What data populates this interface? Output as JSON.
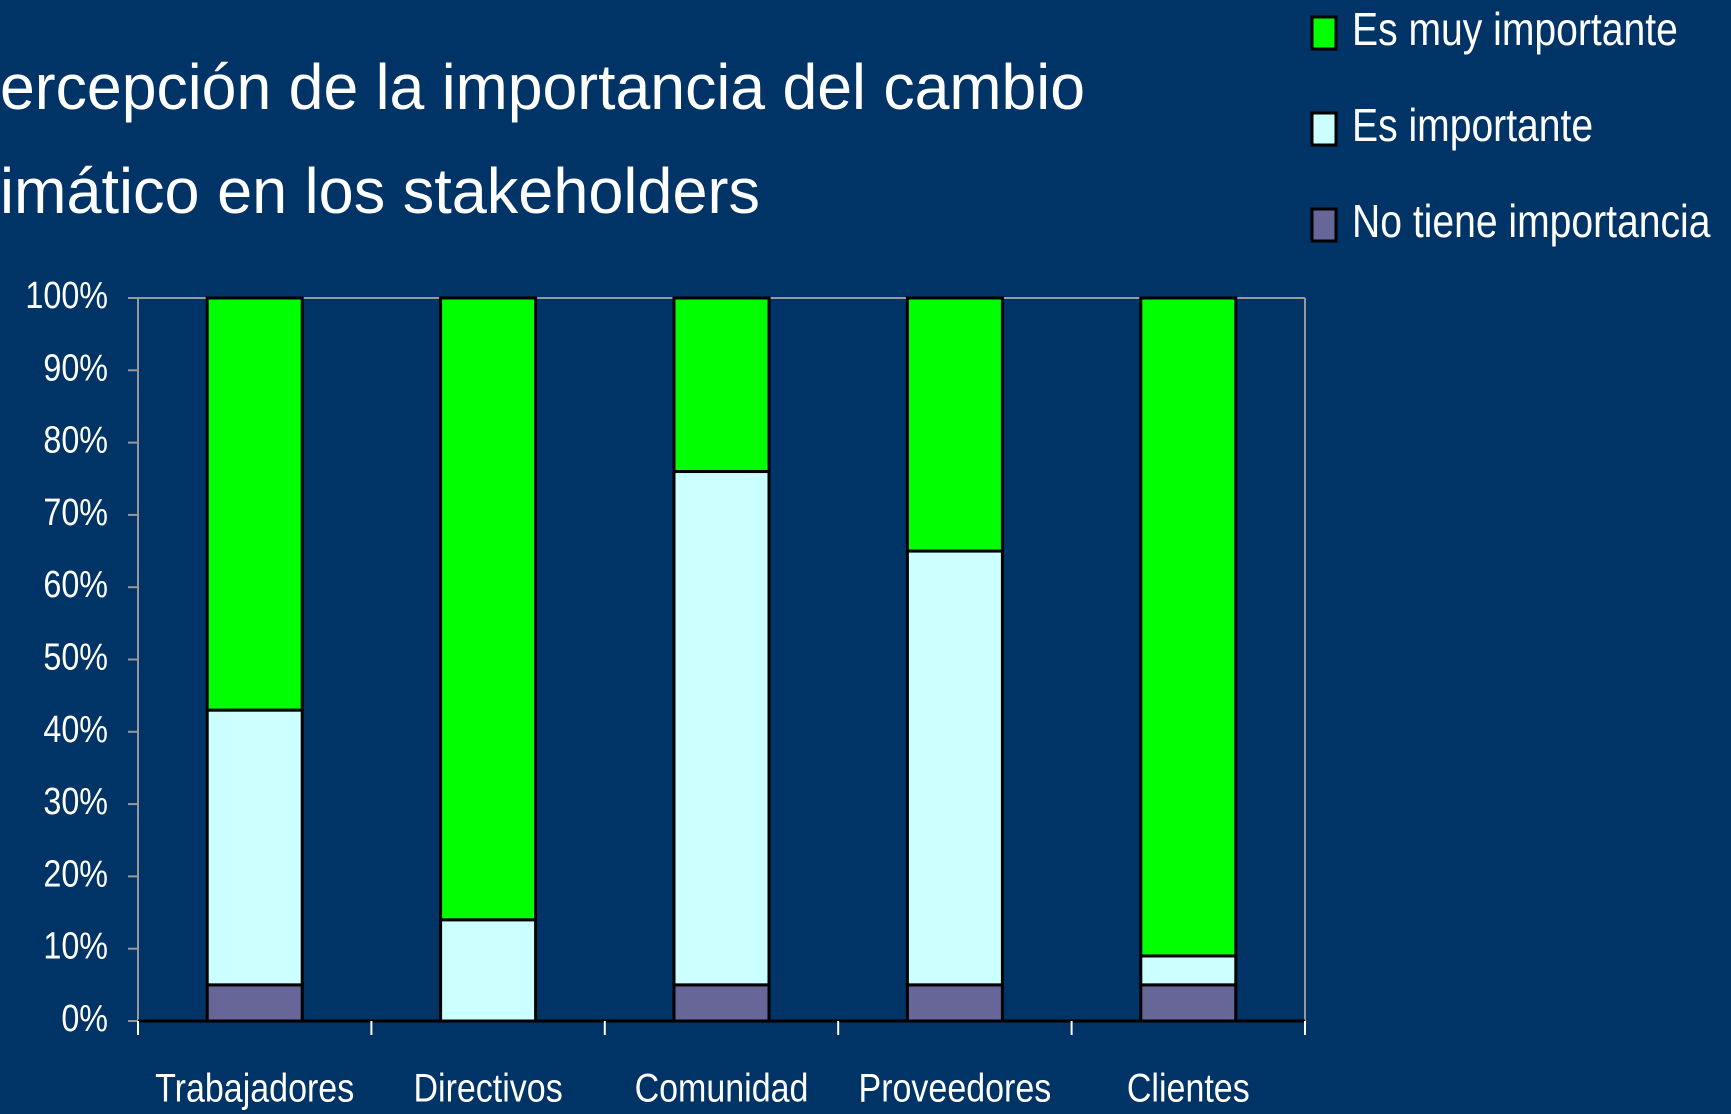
{
  "chart_data": {
    "type": "stacked_bar",
    "title_lines": [
      "ercepción de la importancia del cambio",
      "imático en los stakeholders"
    ],
    "categories": [
      "Trabajadores",
      "Directivos",
      "Comunidad",
      "Proveedores",
      "Clientes"
    ],
    "series": [
      {
        "name": "No tiene importancia",
        "color": "#666699",
        "values": [
          5,
          0,
          5,
          5,
          5
        ]
      },
      {
        "name": "Es importante",
        "color": "#ccffff",
        "values": [
          38,
          14,
          71,
          60,
          4
        ]
      },
      {
        "name": "Es muy importante",
        "color": "#00ff00",
        "values": [
          57,
          86,
          24,
          35,
          91
        ]
      }
    ],
    "legend_order": [
      2,
      1,
      0
    ],
    "ylim": [
      0,
      100
    ],
    "yticks": [
      {
        "value": 0,
        "label": "0%"
      },
      {
        "value": 10,
        "label": "10%"
      },
      {
        "value": 20,
        "label": "20%"
      },
      {
        "value": 30,
        "label": "30%"
      },
      {
        "value": 40,
        "label": "40%"
      },
      {
        "value": 50,
        "label": "50%"
      },
      {
        "value": 60,
        "label": "60%"
      },
      {
        "value": 70,
        "label": "70%"
      },
      {
        "value": 80,
        "label": "80%"
      },
      {
        "value": 90,
        "label": "90%"
      },
      {
        "value": 100,
        "label": "100%"
      }
    ],
    "legend": "top-right"
  }
}
